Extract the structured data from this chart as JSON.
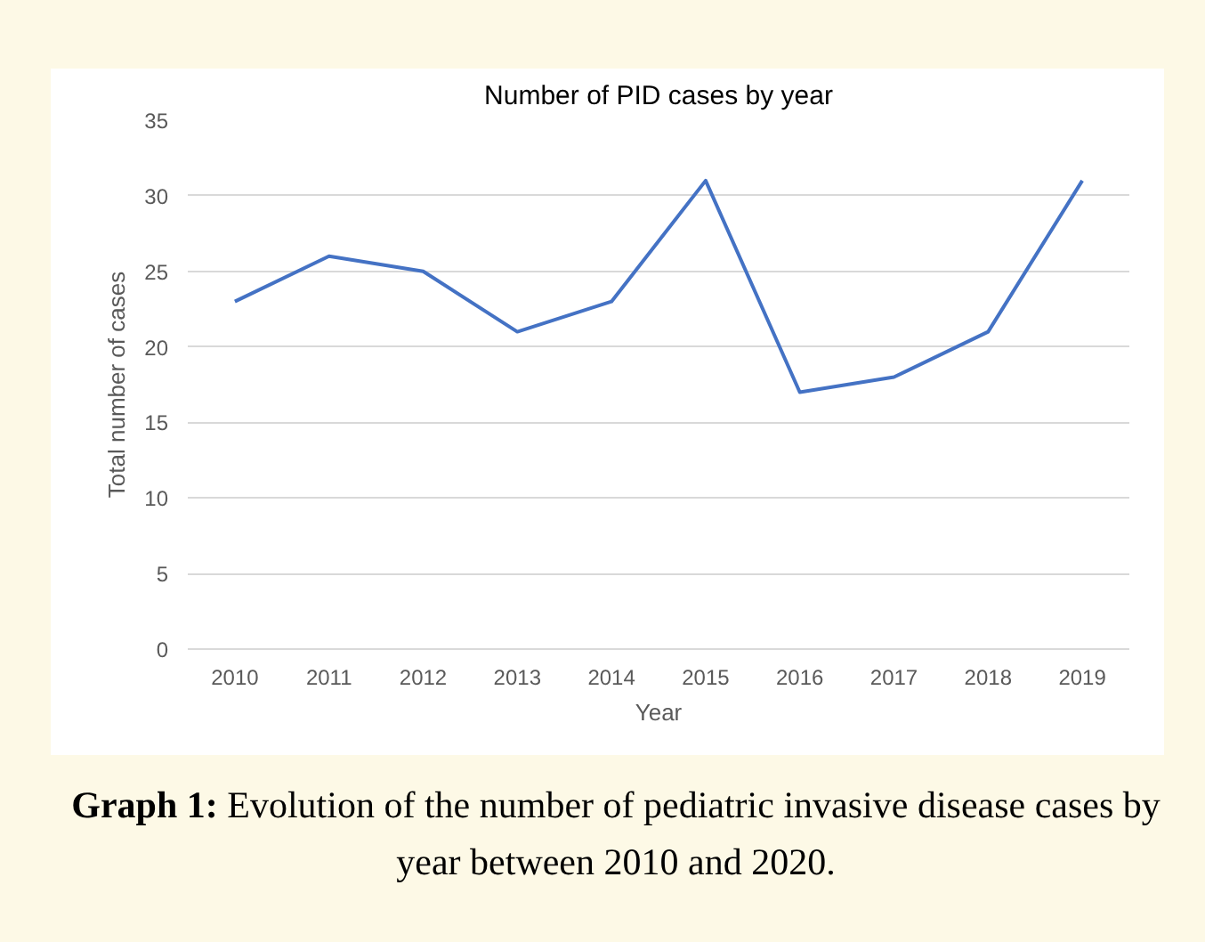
{
  "chart_data": {
    "type": "line",
    "title": "Number of PID cases by year",
    "xlabel": "Year",
    "ylabel": "Total number of cases",
    "categories": [
      "2010",
      "2011",
      "2012",
      "2013",
      "2014",
      "2015",
      "2016",
      "2017",
      "2018",
      "2019"
    ],
    "series": [
      {
        "color": "#4472c4",
        "values": [
          23,
          26,
          25,
          21,
          23,
          31,
          17,
          18,
          21,
          31
        ]
      }
    ],
    "ylim": [
      0,
      35
    ],
    "yticks": [
      0,
      5,
      10,
      15,
      20,
      25,
      30,
      35
    ],
    "grid": "y",
    "marker": "none",
    "line_style": "solid",
    "annotations": [
      "Graph 1: Evolution of the number of pediatric invasive disease cases by year between 2010 and 2020."
    ]
  }
}
